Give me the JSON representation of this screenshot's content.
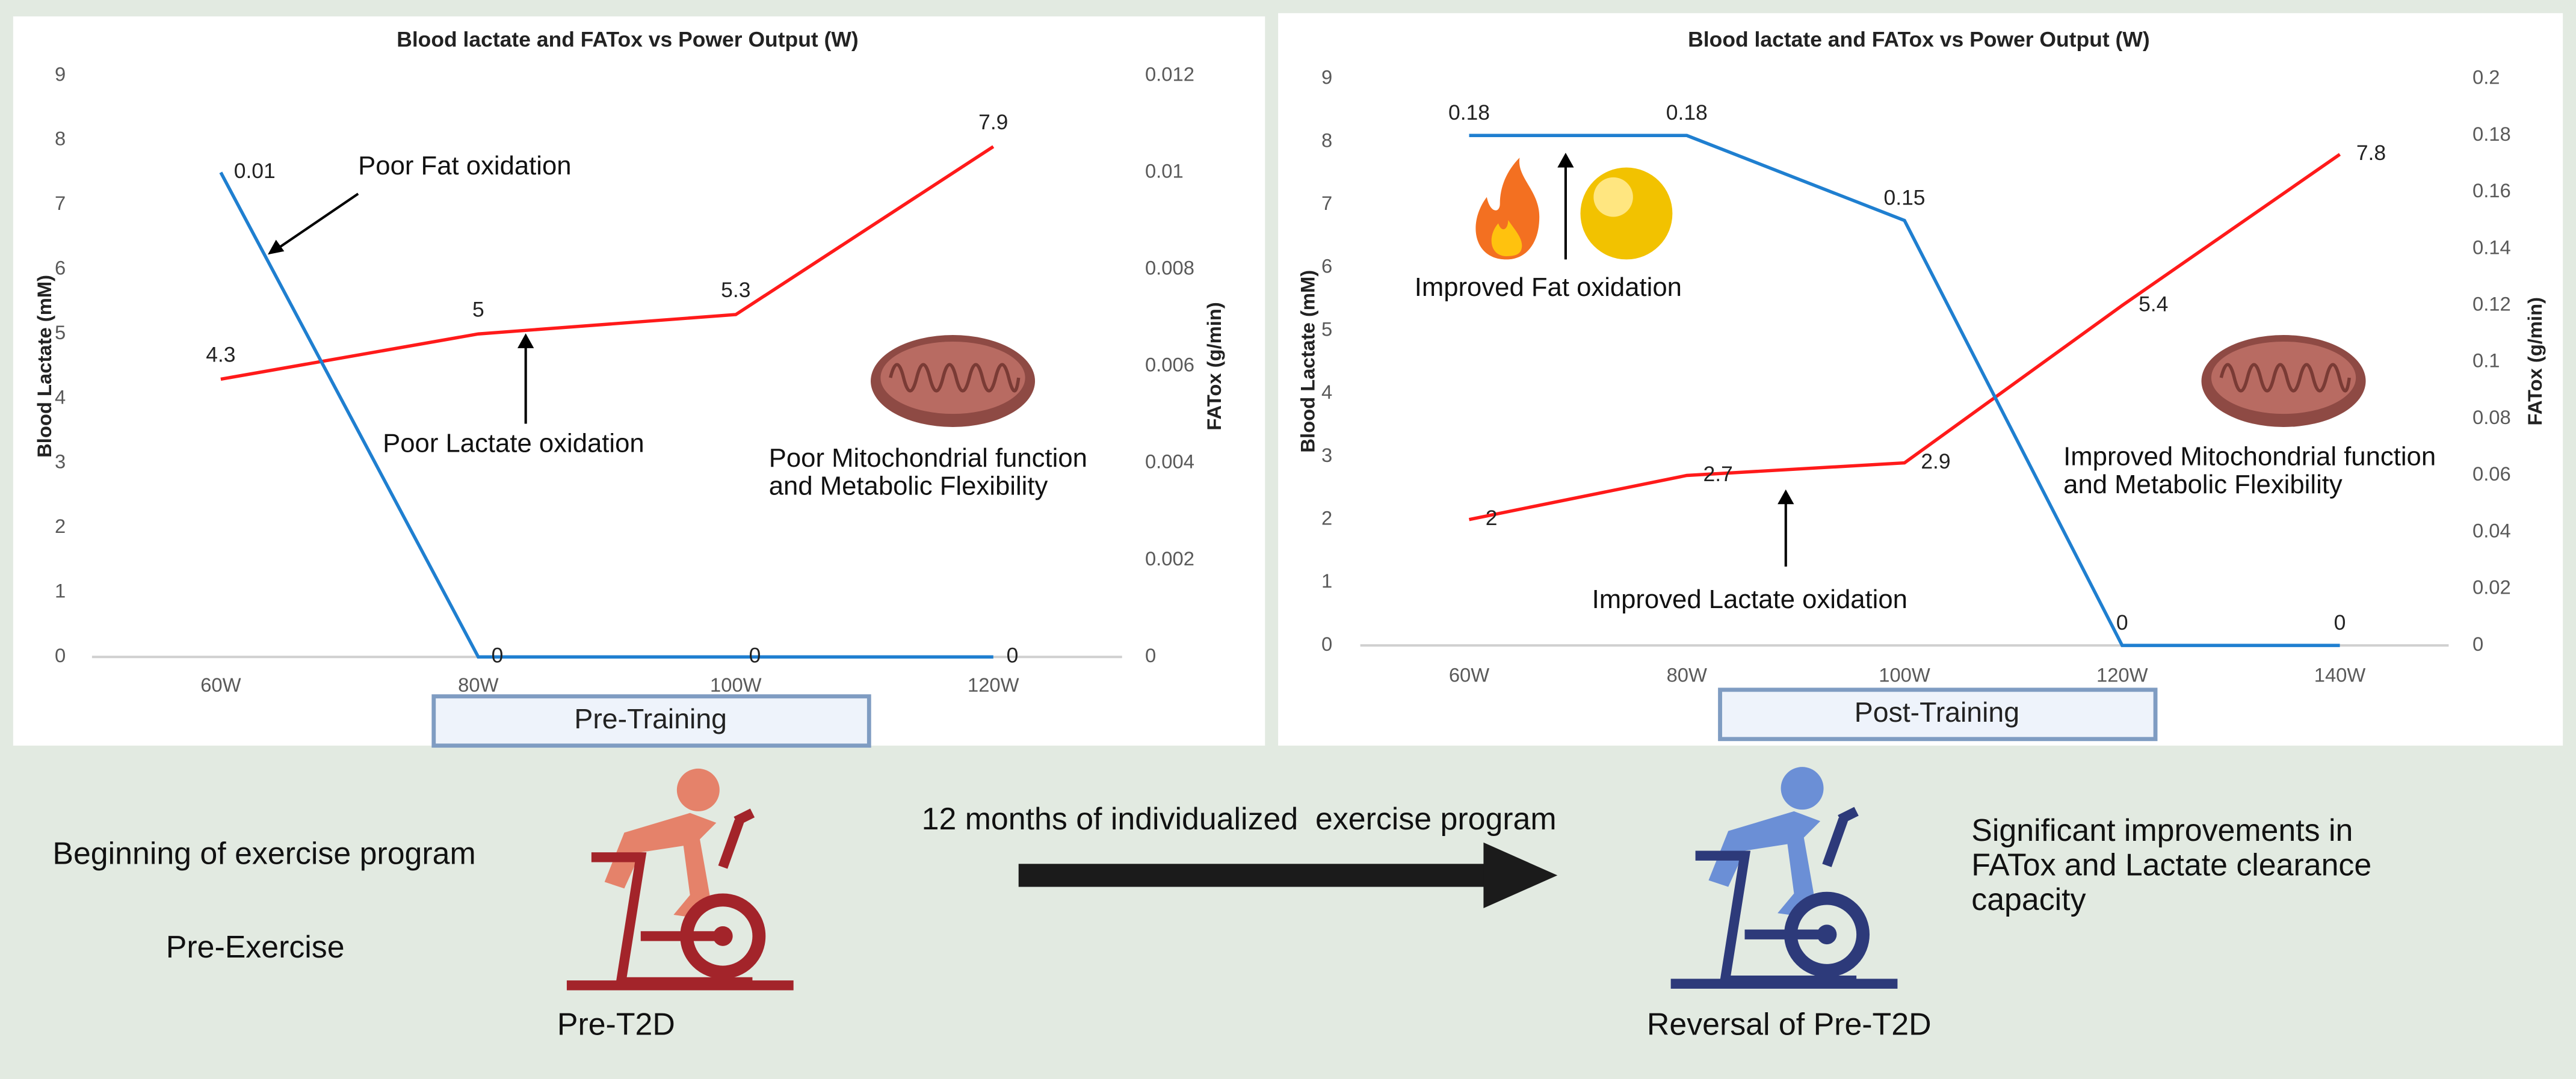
{
  "chart_data": [
    {
      "type": "line",
      "title": "Blood lactate and FATox vs Power Output (W)",
      "y_label": "Blood Lactate (mM)",
      "y2_label": "FATox (g/min)",
      "categories": [
        "60W",
        "80W",
        "100W",
        "120W"
      ],
      "series": [
        {
          "color": "#ff1a1a",
          "values": [
            4.3,
            5,
            5.3,
            7.9
          ]
        },
        {
          "color": "#1f7fd0",
          "axis": "y2",
          "values": [
            0.01,
            0,
            0,
            0
          ]
        }
      ],
      "ylim": [
        0,
        9
      ],
      "yticks": [
        0,
        1,
        2,
        3,
        4,
        5,
        6,
        7,
        8,
        9
      ],
      "y2lim": [
        0,
        0.012
      ],
      "y2ticks": [
        0,
        0.002,
        0.004,
        0.006,
        0.008,
        0.01,
        0.012
      ],
      "caption": "Pre-Training",
      "annotations": [
        "Poor Fat oxidation",
        "Poor Lactate oxidation",
        "Poor Mitochondrial function",
        "and Metabolic Flexibility"
      ]
    },
    {
      "type": "line",
      "title": "Blood lactate and FATox vs Power Output (W)",
      "y_label": "Blood Lactate (mM)",
      "y2_label": "FATox (g/min)",
      "categories": [
        "60W",
        "80W",
        "100W",
        "120W",
        "140W"
      ],
      "series": [
        {
          "color": "#ff1a1a",
          "values": [
            2,
            2.7,
            2.9,
            5.4,
            7.8
          ]
        },
        {
          "color": "#1f7fd0",
          "axis": "y2",
          "values": [
            0.18,
            0.18,
            0.15,
            0,
            0
          ]
        }
      ],
      "ylim": [
        0,
        9
      ],
      "yticks": [
        0,
        1,
        2,
        3,
        4,
        5,
        6,
        7,
        8,
        9
      ],
      "y2lim": [
        0,
        0.2
      ],
      "y2ticks": [
        0,
        0.02,
        0.04,
        0.06,
        0.08,
        0.1,
        0.12,
        0.14,
        0.16,
        0.18,
        0.2
      ],
      "caption": "Post-Training",
      "annotations": [
        "Improved Fat oxidation",
        "Improved Lactate oxidation",
        "Improved Mitochondrial function",
        "and Metabolic Flexibility"
      ]
    }
  ],
  "panel": {
    "start": "Beginning of exercise program",
    "stage": "Pre-Exercise",
    "before": "Pre-T2D",
    "program": "12 months of individualized  exercise program",
    "after": "Reversal of Pre-T2D",
    "outcome": [
      "Significant improvements in",
      "FATox and Lactate clearance",
      "capacity"
    ]
  }
}
